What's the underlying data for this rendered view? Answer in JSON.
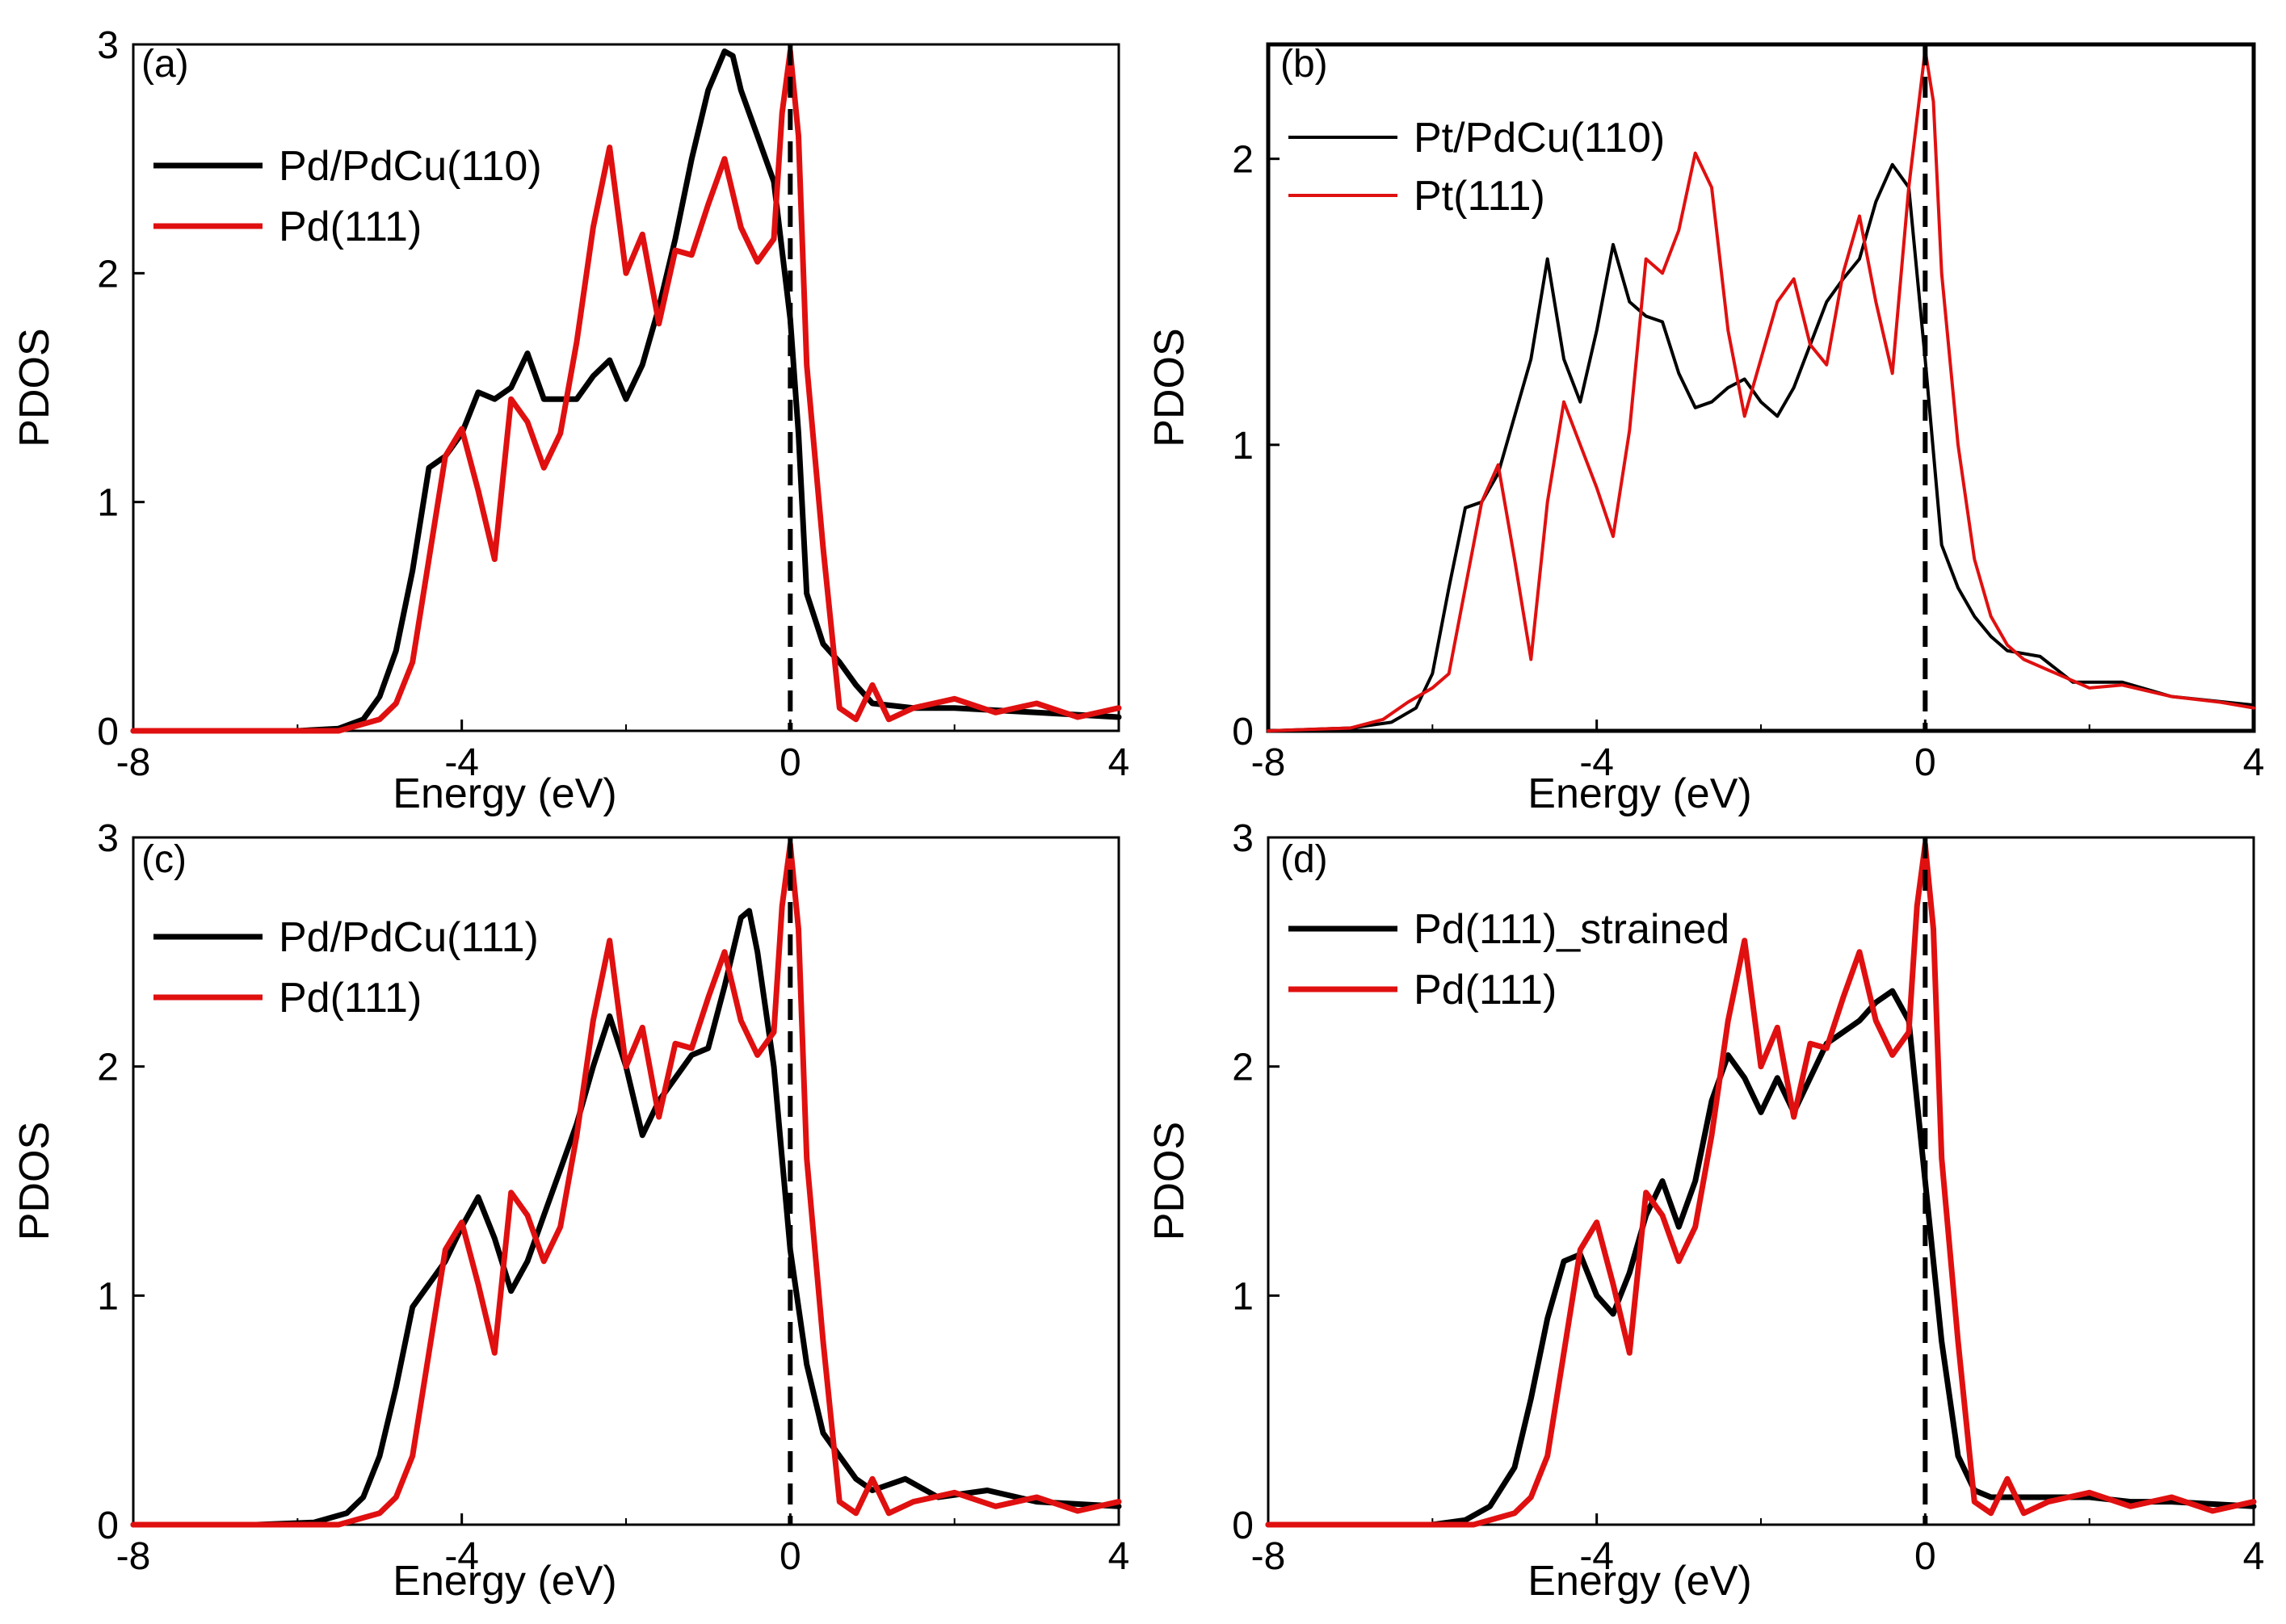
{
  "chart_data": [
    {
      "type": "line",
      "panel": "(a)",
      "xlabel": "Energy (eV)",
      "ylabel": "PDOS",
      "xlim": [
        -8,
        4
      ],
      "ylim": [
        0,
        3
      ],
      "xticks": [
        -8,
        -4,
        0,
        4
      ],
      "yticks": [
        0,
        1,
        2,
        3
      ],
      "fermi_line_x": 0,
      "legend_position": "top-left",
      "series": [
        {
          "name": "Pd/PdCu(110)",
          "color": "#000000",
          "weight": "thick",
          "x": [
            -8,
            -6,
            -5.5,
            -5.2,
            -5.0,
            -4.8,
            -4.6,
            -4.4,
            -4.2,
            -4.0,
            -3.8,
            -3.6,
            -3.4,
            -3.2,
            -3.0,
            -2.8,
            -2.6,
            -2.4,
            -2.2,
            -2.0,
            -1.8,
            -1.6,
            -1.4,
            -1.2,
            -1.0,
            -0.8,
            -0.7,
            -0.6,
            -0.4,
            -0.2,
            0.0,
            0.1,
            0.2,
            0.4,
            0.6,
            0.8,
            1.0,
            1.5,
            2.0,
            3.0,
            4.0
          ],
          "y": [
            0,
            0.0,
            0.01,
            0.05,
            0.15,
            0.35,
            0.7,
            1.15,
            1.2,
            1.3,
            1.48,
            1.45,
            1.5,
            1.65,
            1.45,
            1.45,
            1.45,
            1.55,
            1.62,
            1.45,
            1.6,
            1.85,
            2.15,
            2.5,
            2.8,
            2.97,
            2.95,
            2.8,
            2.6,
            2.4,
            1.8,
            1.3,
            0.6,
            0.38,
            0.3,
            0.2,
            0.12,
            0.1,
            0.1,
            0.08,
            0.06
          ]
        },
        {
          "name": "Pd(111)",
          "color": "#e01010",
          "weight": "thick",
          "x": [
            -8,
            -5.5,
            -5.0,
            -4.8,
            -4.6,
            -4.4,
            -4.2,
            -4.0,
            -3.8,
            -3.6,
            -3.4,
            -3.2,
            -3.0,
            -2.8,
            -2.6,
            -2.4,
            -2.2,
            -2.0,
            -1.8,
            -1.6,
            -1.4,
            -1.2,
            -1.0,
            -0.8,
            -0.6,
            -0.4,
            -0.2,
            -0.1,
            0.0,
            0.1,
            0.2,
            0.4,
            0.6,
            0.8,
            1.0,
            1.2,
            1.5,
            2.0,
            2.5,
            3.0,
            3.5,
            4.0
          ],
          "y": [
            0,
            0.0,
            0.05,
            0.12,
            0.3,
            0.75,
            1.2,
            1.32,
            1.05,
            0.75,
            1.45,
            1.35,
            1.15,
            1.3,
            1.7,
            2.2,
            2.55,
            2.0,
            2.17,
            1.78,
            2.1,
            2.08,
            2.3,
            2.5,
            2.2,
            2.05,
            2.15,
            2.7,
            2.97,
            2.6,
            1.6,
            0.8,
            0.1,
            0.05,
            0.2,
            0.05,
            0.1,
            0.14,
            0.08,
            0.12,
            0.06,
            0.1
          ]
        }
      ]
    },
    {
      "type": "line",
      "panel": "(b)",
      "xlabel": "Energy (eV)",
      "ylabel": "PDOS",
      "xlim": [
        -8,
        4
      ],
      "ylim": [
        0,
        2.4
      ],
      "xticks": [
        -8,
        -4,
        0,
        4
      ],
      "yticks": [
        0,
        1,
        2
      ],
      "fermi_line_x": 0,
      "legend_position": "top-left",
      "series": [
        {
          "name": "Pt/PdCu(110)",
          "color": "#000000",
          "weight": "thin",
          "x": [
            -8,
            -7,
            -6.5,
            -6.2,
            -6.0,
            -5.8,
            -5.6,
            -5.4,
            -5.2,
            -5.0,
            -4.8,
            -4.6,
            -4.4,
            -4.2,
            -4.0,
            -3.8,
            -3.6,
            -3.4,
            -3.2,
            -3.0,
            -2.8,
            -2.6,
            -2.4,
            -2.2,
            -2.0,
            -1.8,
            -1.6,
            -1.4,
            -1.2,
            -1.0,
            -0.8,
            -0.6,
            -0.4,
            -0.2,
            0.0,
            0.2,
            0.4,
            0.6,
            0.8,
            1.0,
            1.4,
            1.8,
            2.4,
            3.0,
            4.0
          ],
          "y": [
            0,
            0.01,
            0.03,
            0.08,
            0.2,
            0.5,
            0.78,
            0.8,
            0.9,
            1.1,
            1.3,
            1.65,
            1.3,
            1.15,
            1.4,
            1.7,
            1.5,
            1.45,
            1.43,
            1.25,
            1.13,
            1.15,
            1.2,
            1.23,
            1.15,
            1.1,
            1.2,
            1.35,
            1.5,
            1.58,
            1.65,
            1.85,
            1.98,
            1.9,
            1.3,
            0.65,
            0.5,
            0.4,
            0.33,
            0.28,
            0.26,
            0.17,
            0.17,
            0.12,
            0.09
          ]
        },
        {
          "name": "Pt(111)",
          "color": "#e01010",
          "weight": "thin",
          "x": [
            -8,
            -7,
            -6.6,
            -6.3,
            -6.0,
            -5.8,
            -5.6,
            -5.4,
            -5.2,
            -5.0,
            -4.8,
            -4.6,
            -4.4,
            -4.2,
            -4.0,
            -3.8,
            -3.6,
            -3.4,
            -3.2,
            -3.0,
            -2.8,
            -2.6,
            -2.4,
            -2.2,
            -2.0,
            -1.8,
            -1.6,
            -1.4,
            -1.2,
            -1.0,
            -0.8,
            -0.6,
            -0.4,
            -0.2,
            0.0,
            0.1,
            0.2,
            0.4,
            0.6,
            0.8,
            1.0,
            1.2,
            1.6,
            2.0,
            2.4,
            3.0,
            3.6,
            4.0
          ],
          "y": [
            0,
            0.01,
            0.04,
            0.1,
            0.15,
            0.2,
            0.5,
            0.8,
            0.93,
            0.6,
            0.25,
            0.8,
            1.15,
            1.0,
            0.85,
            0.68,
            1.05,
            1.65,
            1.6,
            1.75,
            2.02,
            1.9,
            1.4,
            1.1,
            1.3,
            1.5,
            1.58,
            1.35,
            1.28,
            1.6,
            1.8,
            1.5,
            1.25,
            1.9,
            2.38,
            2.2,
            1.6,
            1.0,
            0.6,
            0.4,
            0.3,
            0.25,
            0.2,
            0.15,
            0.16,
            0.12,
            0.1,
            0.08
          ]
        }
      ]
    },
    {
      "type": "line",
      "panel": "(c)",
      "xlabel": "Energy (eV)",
      "ylabel": "PDOS",
      "xlim": [
        -8,
        4
      ],
      "ylim": [
        0,
        3
      ],
      "xticks": [
        -8,
        -4,
        0,
        4
      ],
      "yticks": [
        0,
        1,
        2,
        3
      ],
      "fermi_line_x": 0,
      "legend_position": "top-left",
      "series": [
        {
          "name": "Pd/PdCu(111)",
          "color": "#000000",
          "weight": "thick",
          "x": [
            -8,
            -6.5,
            -5.8,
            -5.4,
            -5.2,
            -5.0,
            -4.8,
            -4.6,
            -4.4,
            -4.2,
            -4.0,
            -3.8,
            -3.6,
            -3.4,
            -3.2,
            -3.0,
            -2.8,
            -2.6,
            -2.4,
            -2.2,
            -2.0,
            -1.8,
            -1.6,
            -1.4,
            -1.2,
            -1.0,
            -0.8,
            -0.6,
            -0.5,
            -0.4,
            -0.2,
            0.0,
            0.2,
            0.4,
            0.6,
            0.8,
            1.0,
            1.4,
            1.8,
            2.4,
            3.0,
            4.0
          ],
          "y": [
            0,
            0.0,
            0.01,
            0.05,
            0.12,
            0.3,
            0.6,
            0.95,
            1.05,
            1.15,
            1.3,
            1.43,
            1.25,
            1.02,
            1.15,
            1.35,
            1.55,
            1.75,
            2.0,
            2.22,
            2.0,
            1.7,
            1.85,
            1.95,
            2.05,
            2.08,
            2.35,
            2.65,
            2.68,
            2.5,
            2.0,
            1.2,
            0.7,
            0.4,
            0.3,
            0.2,
            0.15,
            0.2,
            0.12,
            0.15,
            0.1,
            0.08
          ]
        },
        {
          "name": "Pd(111)",
          "color": "#e01010",
          "weight": "thick",
          "x": [
            -8,
            -5.5,
            -5.0,
            -4.8,
            -4.6,
            -4.4,
            -4.2,
            -4.0,
            -3.8,
            -3.6,
            -3.4,
            -3.2,
            -3.0,
            -2.8,
            -2.6,
            -2.4,
            -2.2,
            -2.0,
            -1.8,
            -1.6,
            -1.4,
            -1.2,
            -1.0,
            -0.8,
            -0.6,
            -0.4,
            -0.2,
            -0.1,
            0.0,
            0.1,
            0.2,
            0.4,
            0.6,
            0.8,
            1.0,
            1.2,
            1.5,
            2.0,
            2.5,
            3.0,
            3.5,
            4.0
          ],
          "y": [
            0,
            0.0,
            0.05,
            0.12,
            0.3,
            0.75,
            1.2,
            1.32,
            1.05,
            0.75,
            1.45,
            1.35,
            1.15,
            1.3,
            1.7,
            2.2,
            2.55,
            2.0,
            2.17,
            1.78,
            2.1,
            2.08,
            2.3,
            2.5,
            2.2,
            2.05,
            2.15,
            2.7,
            2.97,
            2.6,
            1.6,
            0.8,
            0.1,
            0.05,
            0.2,
            0.05,
            0.1,
            0.14,
            0.08,
            0.12,
            0.06,
            0.1
          ]
        }
      ]
    },
    {
      "type": "line",
      "panel": "(d)",
      "xlabel": "Energy (eV)",
      "ylabel": "PDOS",
      "xlim": [
        -8,
        4
      ],
      "ylim": [
        0,
        3
      ],
      "xticks": [
        -8,
        -4,
        0,
        4
      ],
      "yticks": [
        0,
        1,
        2,
        3
      ],
      "fermi_line_x": 0,
      "legend_position": "top-left",
      "series": [
        {
          "name": "Pd(111)_strained",
          "color": "#000000",
          "weight": "thick",
          "x": [
            -8,
            -6,
            -5.6,
            -5.3,
            -5.0,
            -4.8,
            -4.6,
            -4.4,
            -4.2,
            -4.0,
            -3.8,
            -3.6,
            -3.4,
            -3.2,
            -3.0,
            -2.8,
            -2.6,
            -2.4,
            -2.2,
            -2.0,
            -1.8,
            -1.6,
            -1.4,
            -1.2,
            -1.0,
            -0.8,
            -0.6,
            -0.4,
            -0.2,
            0.0,
            0.2,
            0.4,
            0.6,
            0.8,
            1.0,
            1.5,
            2.0,
            2.5,
            3.0,
            4.0
          ],
          "y": [
            0,
            0.0,
            0.02,
            0.08,
            0.25,
            0.55,
            0.9,
            1.15,
            1.18,
            1.0,
            0.92,
            1.1,
            1.35,
            1.5,
            1.3,
            1.5,
            1.85,
            2.05,
            1.95,
            1.8,
            1.95,
            1.8,
            1.95,
            2.1,
            2.15,
            2.2,
            2.28,
            2.33,
            2.2,
            1.5,
            0.8,
            0.3,
            0.15,
            0.12,
            0.12,
            0.12,
            0.12,
            0.1,
            0.1,
            0.08
          ]
        },
        {
          "name": "Pd(111)",
          "color": "#e01010",
          "weight": "thick",
          "x": [
            -8,
            -5.5,
            -5.0,
            -4.8,
            -4.6,
            -4.4,
            -4.2,
            -4.0,
            -3.8,
            -3.6,
            -3.4,
            -3.2,
            -3.0,
            -2.8,
            -2.6,
            -2.4,
            -2.2,
            -2.0,
            -1.8,
            -1.6,
            -1.4,
            -1.2,
            -1.0,
            -0.8,
            -0.6,
            -0.4,
            -0.2,
            -0.1,
            0.0,
            0.1,
            0.2,
            0.4,
            0.6,
            0.8,
            1.0,
            1.2,
            1.5,
            2.0,
            2.5,
            3.0,
            3.5,
            4.0
          ],
          "y": [
            0,
            0.0,
            0.05,
            0.12,
            0.3,
            0.75,
            1.2,
            1.32,
            1.05,
            0.75,
            1.45,
            1.35,
            1.15,
            1.3,
            1.7,
            2.2,
            2.55,
            2.0,
            2.17,
            1.78,
            2.1,
            2.08,
            2.3,
            2.5,
            2.2,
            2.05,
            2.15,
            2.7,
            2.97,
            2.6,
            1.6,
            0.8,
            0.1,
            0.05,
            0.2,
            0.05,
            0.1,
            0.14,
            0.08,
            0.12,
            0.06,
            0.1
          ]
        }
      ]
    }
  ]
}
